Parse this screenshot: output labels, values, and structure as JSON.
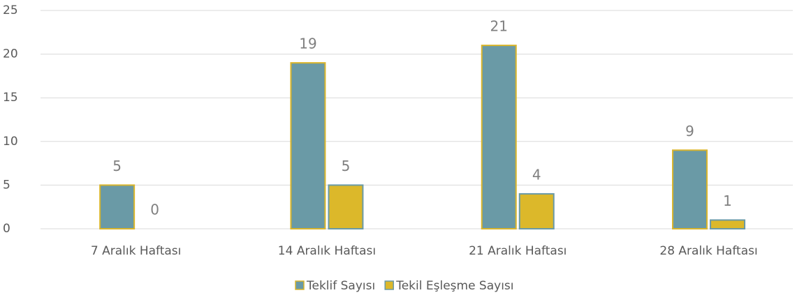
{
  "chart_data": {
    "type": "bar",
    "categories": [
      "7 Aralık Haftası",
      "14 Aralık Haftası",
      "21 Aralık Haftası",
      "28 Aralık Haftası"
    ],
    "series": [
      {
        "name": "Teklif Sayısı",
        "color": "#6a9aa6",
        "border": "#d9b52c",
        "values": [
          5,
          19,
          21,
          9
        ]
      },
      {
        "name": "Tekil Eşleşme Sayısı",
        "color": "#dcb82a",
        "border": "#6a9aa6",
        "values": [
          0,
          5,
          4,
          1
        ]
      }
    ],
    "ylim": [
      0,
      25
    ],
    "yticks": [
      0,
      5,
      10,
      15,
      20,
      25
    ],
    "grid": true,
    "legend": "bottom"
  }
}
